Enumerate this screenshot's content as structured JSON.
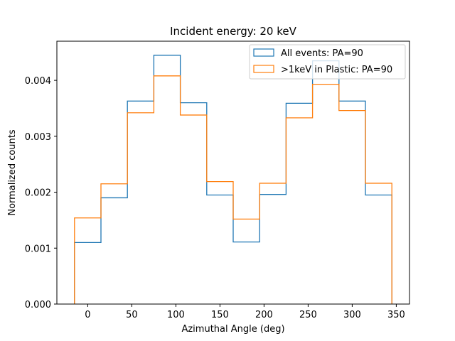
{
  "chart_data": {
    "type": "histogram",
    "title": "Incident energy: 20 keV",
    "xlabel": "Azimuthal Angle (deg)",
    "ylabel": "Normalized counts",
    "xlim": [
      -35,
      365
    ],
    "ylim": [
      0,
      0.0047
    ],
    "xticks": [
      0,
      50,
      100,
      150,
      200,
      250,
      300,
      350
    ],
    "xtick_labels": [
      "0",
      "50",
      "100",
      "150",
      "200",
      "250",
      "300",
      "350"
    ],
    "yticks": [
      0,
      0.001,
      0.002,
      0.003,
      0.004
    ],
    "ytick_labels": [
      "0.000",
      "0.001",
      "0.002",
      "0.003",
      "0.004"
    ],
    "bin_edges": [
      -15,
      15,
      45,
      75,
      105,
      135,
      165,
      195,
      225,
      255,
      285,
      315,
      345
    ],
    "legend_position": "upper right",
    "grid": false,
    "series": [
      {
        "name": "All events: PA=90",
        "color": "#1f77b4",
        "values": [
          0.0011,
          0.0019,
          0.00363,
          0.00445,
          0.0036,
          0.00195,
          0.00111,
          0.00196,
          0.00359,
          0.00435,
          0.00363,
          0.00195
        ]
      },
      {
        "name": ">1keV in Plastic: PA=90",
        "color": "#ff7f0e",
        "values": [
          0.00154,
          0.00215,
          0.00342,
          0.00408,
          0.00338,
          0.00219,
          0.00152,
          0.00216,
          0.00333,
          0.00393,
          0.00346,
          0.00216
        ]
      }
    ]
  }
}
